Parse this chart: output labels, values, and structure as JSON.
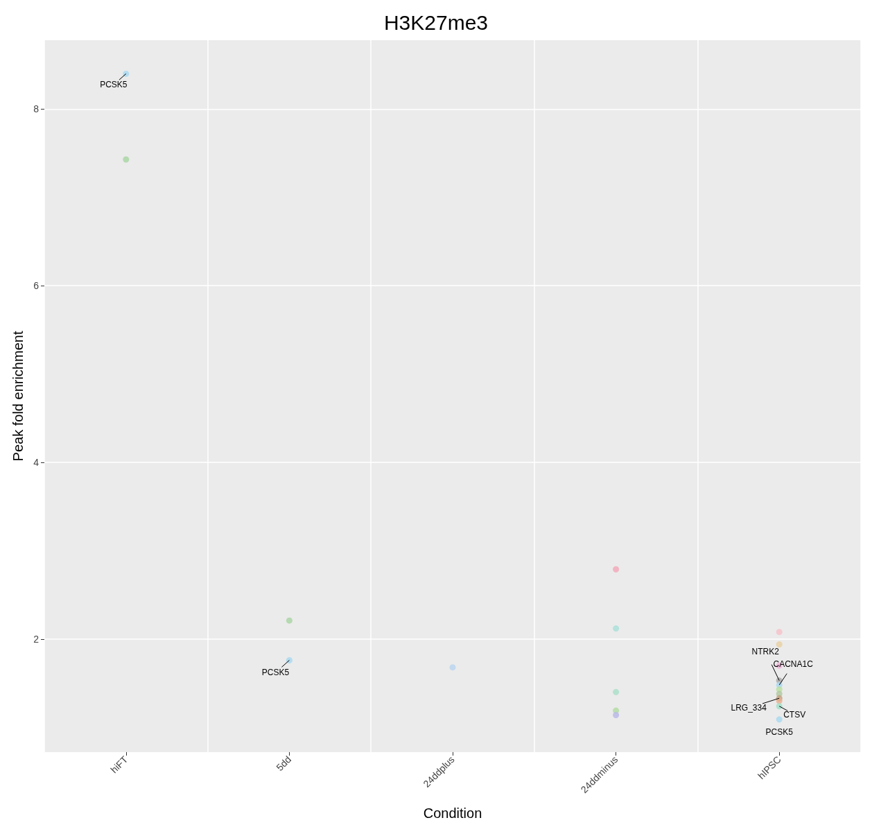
{
  "chart_data": {
    "type": "scatter",
    "title": "H3K27me3",
    "xlabel": "Condition",
    "ylabel": "Peak fold enrichment",
    "categories": [
      "hiFT",
      "5dd",
      "24ddplus",
      "24ddminus",
      "hIPSC"
    ],
    "series": [
      {
        "x": [
          "hiFT",
          "hiFT",
          "5dd",
          "5dd",
          "24ddplus",
          "24ddminus",
          "24ddminus",
          "24ddminus",
          "24ddminus",
          "24ddminus",
          "hIPSC",
          "hIPSC",
          "hIPSC",
          "hIPSC",
          "hIPSC",
          "hIPSC",
          "hIPSC",
          "hIPSC",
          "hIPSC",
          "hIPSC",
          "hIPSC"
        ],
        "values": [
          8.4,
          7.43,
          2.21,
          1.76,
          1.68,
          2.79,
          2.12,
          1.4,
          1.19,
          1.14,
          2.08,
          1.94,
          1.7,
          1.53,
          1.48,
          1.43,
          1.38,
          1.33,
          1.3,
          1.24,
          1.09
        ],
        "colors": [
          "#a6d8f0",
          "#a8d5a2",
          "#a8d5a2",
          "#a6d8f0",
          "#b8d4f0",
          "#f4a6b8",
          "#a8e0d8",
          "#a8e0c8",
          "#b0dca0",
          "#b8b8e8",
          "#f8c0c8",
          "#e8d0a0",
          "#f0b0d8",
          "#a8a8a8",
          "#a8d8f0",
          "#b8e0a0",
          "#b0c8a0",
          "#c0a080",
          "#e8b090",
          "#a0e0c8",
          "#a8d8f0"
        ]
      }
    ],
    "annotations": [
      {
        "text": "PCSK5",
        "x": "hiFT",
        "y": 8.4
      },
      {
        "text": "PCSK5",
        "x": "5dd",
        "y": 1.76
      },
      {
        "text": "NTRK2",
        "x": "hIPSC",
        "y": 1.53
      },
      {
        "text": "CACNA1C",
        "x": "hIPSC",
        "y": 1.48
      },
      {
        "text": "LRG_334",
        "x": "hIPSC",
        "y": 1.33
      },
      {
        "text": "CTSV",
        "x": "hIPSC",
        "y": 1.24
      },
      {
        "text": "PCSK5",
        "x": "hIPSC",
        "y": 1.09
      }
    ],
    "ylim": [
      0.72,
      8.78
    ],
    "yticks": [
      2,
      4,
      6,
      8
    ],
    "grid": true,
    "marker": "circle"
  }
}
